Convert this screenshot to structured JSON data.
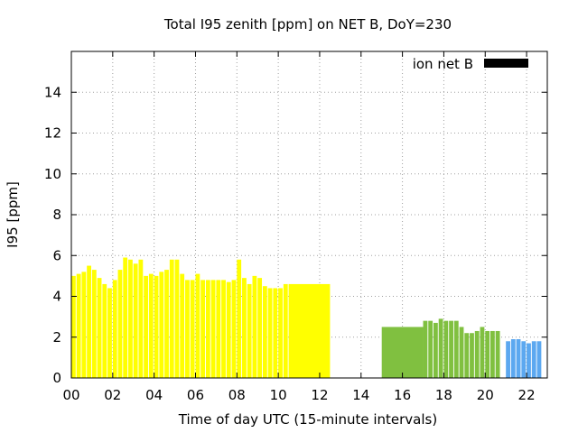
{
  "chart_data": {
    "type": "bar",
    "title": "Total I95 zenith [ppm] on NET B, DoY=230",
    "xlabel": "Time of day UTC (15-minute intervals)",
    "ylabel": "I95 [ppm]",
    "xlim": [
      0,
      23
    ],
    "ylim": [
      0,
      16
    ],
    "xticks": [
      "00",
      "02",
      "04",
      "06",
      "08",
      "10",
      "12",
      "14",
      "16",
      "18",
      "20",
      "22"
    ],
    "yticks": [
      "0",
      "2",
      "4",
      "6",
      "8",
      "10",
      "12",
      "14"
    ],
    "grid": true,
    "legend": {
      "position": "top-right",
      "label": "ion net B",
      "color": "#000000"
    },
    "colors": {
      "yellow": "#ffff00",
      "green": "#80c040",
      "blue": "#5ca8f0"
    },
    "series": [
      {
        "color": "#ffff00",
        "points": [
          [
            0.0,
            5.0
          ],
          [
            0.25,
            5.1
          ],
          [
            0.5,
            5.2
          ],
          [
            0.75,
            5.5
          ],
          [
            1.0,
            5.3
          ],
          [
            1.25,
            4.9
          ],
          [
            1.5,
            4.6
          ],
          [
            1.75,
            4.4
          ],
          [
            2.0,
            4.8
          ],
          [
            2.25,
            5.3
          ],
          [
            2.5,
            5.9
          ],
          [
            2.75,
            5.8
          ],
          [
            3.0,
            5.6
          ],
          [
            3.25,
            5.8
          ],
          [
            3.5,
            5.0
          ],
          [
            3.75,
            5.1
          ],
          [
            4.0,
            5.0
          ],
          [
            4.25,
            5.2
          ],
          [
            4.5,
            5.3
          ],
          [
            4.75,
            5.8
          ],
          [
            5.0,
            5.8
          ],
          [
            5.25,
            5.1
          ],
          [
            5.5,
            4.8
          ],
          [
            5.75,
            4.8
          ],
          [
            6.0,
            5.1
          ],
          [
            6.25,
            4.8
          ],
          [
            6.5,
            4.8
          ],
          [
            6.75,
            4.8
          ],
          [
            7.0,
            4.8
          ],
          [
            7.25,
            4.8
          ],
          [
            7.5,
            4.7
          ],
          [
            7.75,
            4.8
          ],
          [
            8.0,
            5.8
          ],
          [
            8.25,
            4.9
          ],
          [
            8.5,
            4.6
          ],
          [
            8.75,
            5.0
          ],
          [
            9.0,
            4.9
          ],
          [
            9.25,
            4.5
          ],
          [
            9.5,
            4.4
          ],
          [
            9.75,
            4.4
          ],
          [
            10.0,
            4.4
          ],
          [
            10.25,
            4.6
          ]
        ],
        "blocks": [
          {
            "x": [
              10.5,
              12.5
            ],
            "value": 4.6
          }
        ]
      },
      {
        "color": "#80c040",
        "blocks": [
          {
            "x": [
              15.0,
              17.0
            ],
            "value": 2.5
          }
        ],
        "points": [
          [
            17.0,
            2.8
          ],
          [
            17.25,
            2.8
          ],
          [
            17.5,
            2.7
          ],
          [
            17.75,
            2.9
          ],
          [
            18.0,
            2.8
          ],
          [
            18.25,
            2.8
          ],
          [
            18.5,
            2.8
          ],
          [
            18.75,
            2.5
          ],
          [
            19.0,
            2.2
          ],
          [
            19.25,
            2.2
          ],
          [
            19.5,
            2.3
          ],
          [
            19.75,
            2.5
          ],
          [
            20.0,
            2.3
          ],
          [
            20.25,
            2.3
          ],
          [
            20.5,
            2.3
          ]
        ]
      },
      {
        "color": "#5ca8f0",
        "points": [
          [
            21.0,
            1.8
          ],
          [
            21.25,
            1.9
          ],
          [
            21.5,
            1.9
          ],
          [
            21.75,
            1.8
          ],
          [
            22.0,
            1.7
          ],
          [
            22.25,
            1.8
          ],
          [
            22.5,
            1.8
          ]
        ]
      }
    ]
  }
}
